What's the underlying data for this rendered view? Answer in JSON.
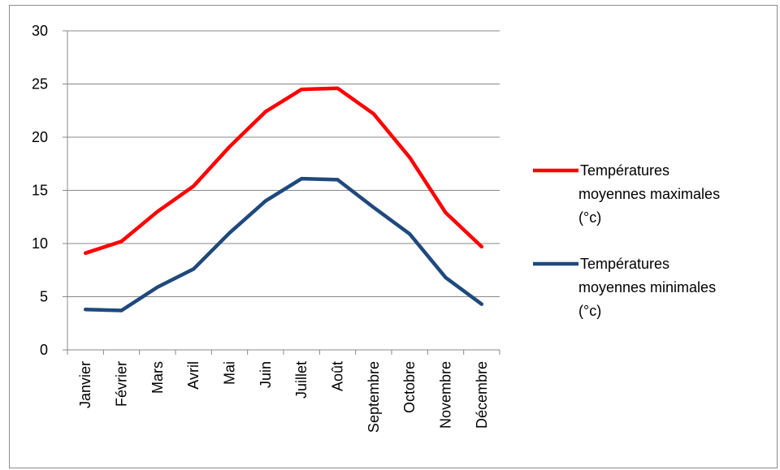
{
  "chart_data": {
    "type": "line",
    "categories": [
      "Janvier",
      "Février",
      "Mars",
      "Avril",
      "Mai",
      "Juin",
      "Juillet",
      "Août",
      "Septembre",
      "Octobre",
      "Novembre",
      "Décembre"
    ],
    "series": [
      {
        "name": "Températures moyennes maximales (°c)",
        "name_lines": [
          "Températures",
          "moyennes maximales",
          "(°c)"
        ],
        "color": "#ff0000",
        "values": [
          9.1,
          10.2,
          13.0,
          15.4,
          19.1,
          22.4,
          24.5,
          24.6,
          22.2,
          18.1,
          12.9,
          9.7
        ]
      },
      {
        "name": "Températures moyennes minimales (°c)",
        "name_lines": [
          "Températures",
          "moyennes minimales",
          "(°c)"
        ],
        "color": "#1f497d",
        "values": [
          3.8,
          3.7,
          5.9,
          7.6,
          11.0,
          14.0,
          16.1,
          16.0,
          13.4,
          10.9,
          6.8,
          4.3
        ]
      }
    ],
    "ylim": [
      0,
      30
    ],
    "yticks": [
      "0",
      "5",
      "10",
      "15",
      "20",
      "25",
      "30"
    ],
    "grid": true,
    "legend_position": "right",
    "title": "",
    "xlabel": "",
    "ylabel": ""
  }
}
